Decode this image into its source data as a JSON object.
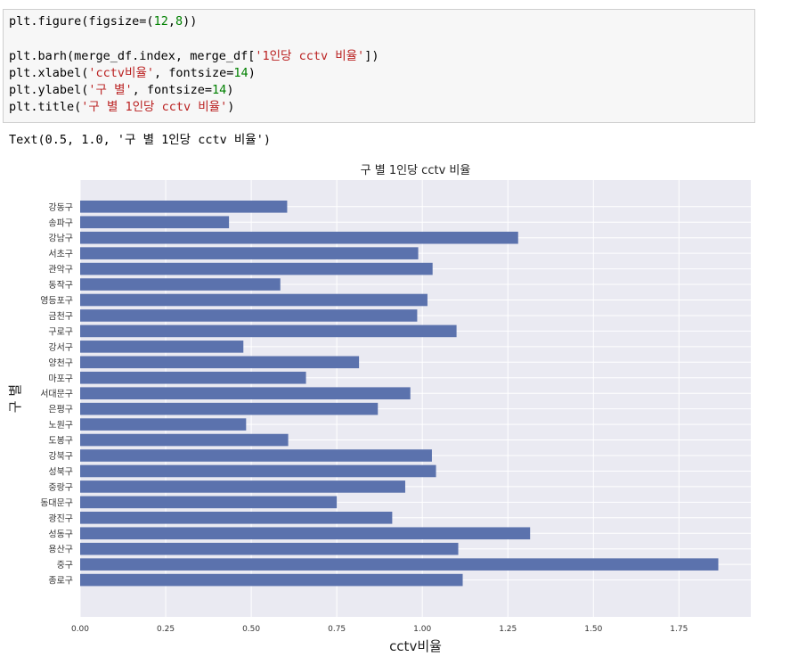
{
  "code_cell": {
    "lines": [
      [
        {
          "t": "plt.figure(figsize=(",
          "c": ""
        },
        {
          "t": "12",
          "c": "num"
        },
        {
          "t": ",",
          "c": ""
        },
        {
          "t": "8",
          "c": "num"
        },
        {
          "t": "))",
          "c": ""
        }
      ],
      [],
      [
        {
          "t": "plt.barh(merge_df.index, merge_df[",
          "c": ""
        },
        {
          "t": "'1인당 cctv 비율'",
          "c": "str"
        },
        {
          "t": "])",
          "c": ""
        }
      ],
      [
        {
          "t": "plt.xlabel(",
          "c": ""
        },
        {
          "t": "'cctv비율'",
          "c": "str"
        },
        {
          "t": ", fontsize=",
          "c": ""
        },
        {
          "t": "14",
          "c": "num"
        },
        {
          "t": ")",
          "c": ""
        }
      ],
      [
        {
          "t": "plt.ylabel(",
          "c": ""
        },
        {
          "t": "'구 별'",
          "c": "str"
        },
        {
          "t": ", fontsize=",
          "c": ""
        },
        {
          "t": "14",
          "c": "num"
        },
        {
          "t": ")",
          "c": ""
        }
      ],
      [
        {
          "t": "plt.title(",
          "c": ""
        },
        {
          "t": "'구 별 1인당 cctv 비율'",
          "c": "str"
        },
        {
          "t": ")",
          "c": ""
        }
      ]
    ]
  },
  "output_text": "Text(0.5, 1.0, '구 별 1인당 cctv 비율')",
  "chart_data": {
    "type": "bar",
    "orientation": "horizontal",
    "title": "구 별 1인당 cctv 비율",
    "xlabel": "cctv비율",
    "ylabel": "구 별",
    "xlim": [
      0,
      1.96
    ],
    "xticks": [
      "0.00",
      "0.25",
      "0.50",
      "0.75",
      "1.00",
      "1.25",
      "1.50",
      "1.75"
    ],
    "grid": true,
    "categories": [
      "강동구",
      "송파구",
      "강남구",
      "서초구",
      "관악구",
      "동작구",
      "영등포구",
      "금천구",
      "구로구",
      "강서구",
      "양천구",
      "마포구",
      "서대문구",
      "은평구",
      "노원구",
      "도봉구",
      "강북구",
      "성북구",
      "중랑구",
      "동대문구",
      "광진구",
      "성동구",
      "용산구",
      "중구",
      "종로구"
    ],
    "values": [
      0.605,
      0.435,
      1.28,
      0.988,
      1.03,
      0.585,
      1.015,
      0.985,
      1.1,
      0.477,
      0.815,
      0.66,
      0.965,
      0.87,
      0.485,
      0.608,
      1.028,
      1.04,
      0.95,
      0.75,
      0.912,
      1.315,
      1.105,
      1.865,
      1.118
    ],
    "colors": {
      "bar": "#5b72ad",
      "axes_bg": "#eaeaf2",
      "grid": "#ffffff"
    }
  }
}
